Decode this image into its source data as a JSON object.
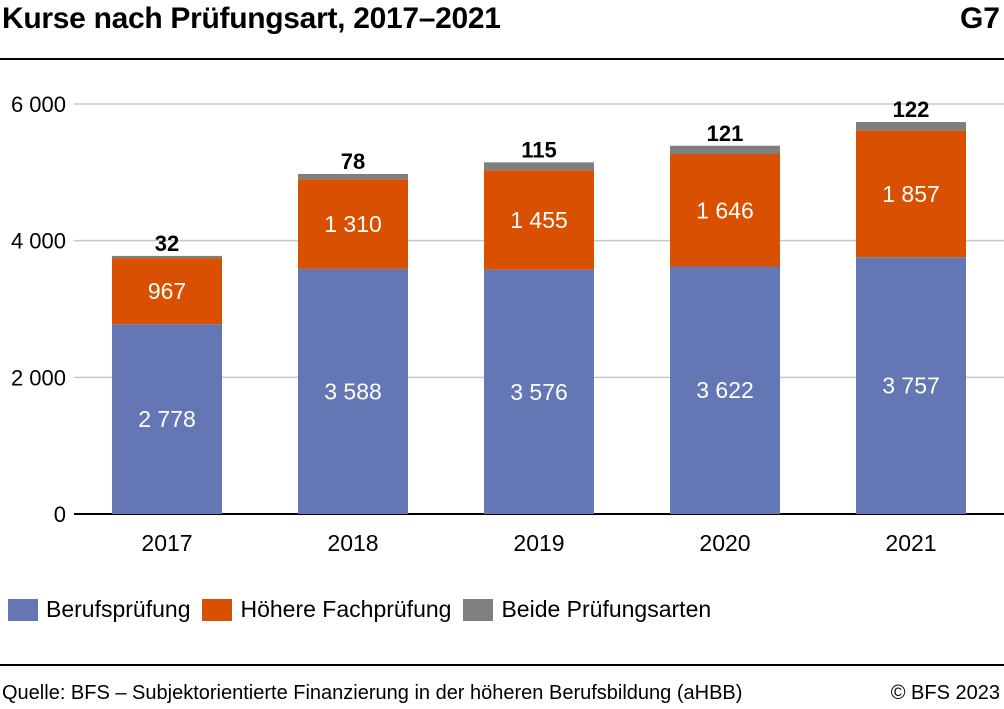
{
  "header": {
    "title": "Kurse nach Prüfungsart, 2017–2021",
    "code": "G7"
  },
  "chart_data": {
    "type": "bar",
    "stacked": true,
    "categories": [
      "2017",
      "2018",
      "2019",
      "2020",
      "2021"
    ],
    "series": [
      {
        "name": "Berufsprüfung",
        "color": "#6576b4",
        "values": [
          2778,
          3588,
          3576,
          3622,
          3757
        ],
        "labels": [
          "2 778",
          "3 588",
          "3 576",
          "3 622",
          "3 757"
        ]
      },
      {
        "name": "Höhere Fachprüfung",
        "color": "#d95000",
        "values": [
          967,
          1310,
          1455,
          1646,
          1857
        ],
        "labels": [
          "967",
          "1 310",
          "1 455",
          "1 646",
          "1 857"
        ]
      },
      {
        "name": "Beide Prüfungsarten",
        "color": "#7f7f7f",
        "values": [
          32,
          78,
          115,
          121,
          122
        ],
        "labels": [
          "32",
          "78",
          "115",
          "121",
          "122"
        ]
      }
    ],
    "yticks": [
      0,
      2000,
      4000,
      6000
    ],
    "ytick_labels": [
      "0",
      "2 000",
      "4 000",
      "6 000"
    ],
    "ylim": [
      0,
      6000
    ],
    "grid": true,
    "legend_position": "bottom-left"
  },
  "footer": {
    "source": "Quelle: BFS – Subjektorientierte Finanzierung in der höheren Berufsbildung (aHBB)",
    "copyright": "© BFS 2023"
  }
}
